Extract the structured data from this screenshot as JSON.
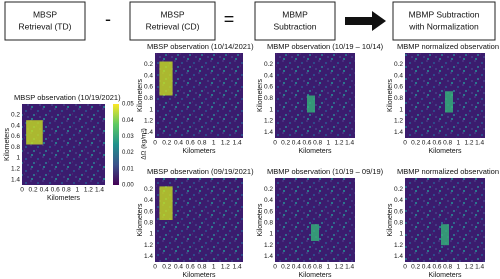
{
  "header": {
    "steps": [
      {
        "lines": [
          "MBSP",
          "Retrieval (TD)"
        ]
      },
      {
        "lines": [
          "MBSP",
          "Retrieval (CD)"
        ]
      },
      {
        "lines": [
          "MBMP",
          "Subtraction"
        ]
      },
      {
        "lines": [
          "MBMP Subtraction",
          "with Normalization"
        ]
      }
    ],
    "operators": [
      "-",
      "="
    ]
  },
  "panels": [
    {
      "title": "MBSP observation (10/19/2021)"
    },
    {
      "title": "MBSP observation (10/14/2021)"
    },
    {
      "title": "MBMP observation (10/19 – 10/14)"
    },
    {
      "title": "MBMP normalized observation"
    },
    {
      "title": "MBSP observation (09/19/2021)"
    },
    {
      "title": "MBMP observation (10/19 – 09/19)"
    },
    {
      "title": "MBMP normalized observation"
    }
  ],
  "axes": {
    "label": "Kilometers",
    "yticks": [
      "0.2",
      "0.4",
      "0.6",
      "0.8",
      "1",
      "1.2",
      "1.4"
    ],
    "xticks": [
      "0",
      "0.2",
      "0.4",
      "0.6",
      "0.8",
      "1",
      "1.2",
      "1.4"
    ]
  },
  "colorbar": {
    "label": "ΔΩ (kg/m²)",
    "ticks": [
      "0.05",
      "0.04",
      "0.03",
      "0.02",
      "0.01",
      "0.00"
    ]
  }
}
